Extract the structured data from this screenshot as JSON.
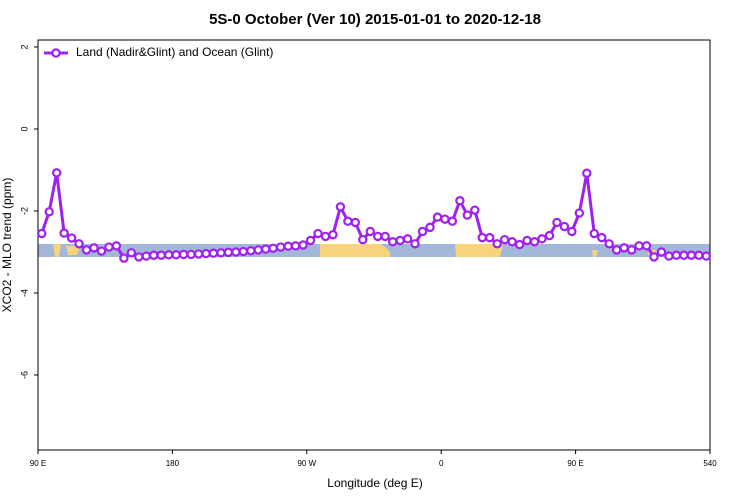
{
  "chart_data": {
    "type": "line",
    "title": "5S-0 October (Ver 10)   2015-01-01 to 2020-12-18",
    "x_label": "Longitude (deg E)",
    "y_label": "XCO2 - MLO trend (ppm)",
    "x": [
      92.5,
      97.5,
      102.5,
      107.5,
      112.5,
      117.5,
      122.5,
      127.5,
      132.5,
      137.5,
      142.5,
      147.5,
      152.5,
      157.5,
      162.5,
      167.5,
      172.5,
      177.5,
      182.5,
      187.5,
      192.5,
      197.5,
      202.5,
      207.5,
      212.5,
      217.5,
      222.5,
      227.5,
      232.5,
      237.5,
      242.5,
      247.5,
      252.5,
      257.5,
      262.5,
      267.5,
      272.5,
      277.5,
      282.5,
      287.5,
      292.5,
      297.5,
      302.5,
      307.5,
      312.5,
      317.5,
      322.5,
      327.5,
      332.5,
      337.5,
      342.5,
      347.5,
      352.5,
      357.5,
      362.5,
      367.5,
      372.5,
      377.5,
      382.5,
      387.5,
      392.5,
      397.5,
      402.5,
      407.5,
      412.5,
      417.5,
      422.5,
      427.5,
      432.5,
      437.5,
      442.5,
      447.5,
      452.5,
      457.5,
      462.5,
      467.5,
      472.5,
      477.5,
      482.5,
      487.5,
      492.5,
      497.5,
      502.5,
      507.5,
      512.5,
      517.5,
      522.5,
      527.5,
      532.5,
      537.5
    ],
    "series": [
      {
        "name": "Land (Nadir&Glint) and Ocean (Glint)",
        "color": "#a020f0",
        "values": [
          -2.55,
          -2.02,
          -1.07,
          -2.54,
          -2.66,
          -2.8,
          -2.95,
          -2.9,
          -2.98,
          -2.88,
          -2.85,
          -3.15,
          -3.02,
          -3.12,
          -3.1,
          -3.08,
          -3.08,
          -3.07,
          -3.07,
          -3.06,
          -3.06,
          -3.05,
          -3.04,
          -3.03,
          -3.02,
          -3.01,
          -3.0,
          -2.99,
          -2.97,
          -2.95,
          -2.93,
          -2.91,
          -2.88,
          -2.86,
          -2.85,
          -2.83,
          -2.72,
          -2.55,
          -2.62,
          -2.58,
          -1.9,
          -2.25,
          -2.28,
          -2.7,
          -2.5,
          -2.62,
          -2.62,
          -2.75,
          -2.72,
          -2.68,
          -2.8,
          -2.5,
          -2.4,
          -2.15,
          -2.2,
          -2.25,
          -1.75,
          -2.1,
          -1.98,
          -2.65,
          -2.65,
          -2.8,
          -2.7,
          -2.75,
          -2.82,
          -2.72,
          -2.75,
          -2.68,
          -2.6,
          -2.28,
          -2.38,
          -2.5,
          -2.05,
          -1.08,
          -2.55,
          -2.65,
          -2.8,
          -2.95,
          -2.9,
          -2.95,
          -2.85,
          -2.85,
          -3.12,
          -3.0,
          -3.1,
          -3.08,
          -3.08,
          -3.08,
          -3.08,
          -3.1
        ]
      }
    ],
    "xlim": [
      90,
      540
    ],
    "xticks": [
      {
        "value": 90,
        "label": "90 E"
      },
      180,
      {
        "value": 270,
        "label": "90 W"
      },
      {
        "value": 360,
        "label": "0"
      },
      {
        "value": 450,
        "label": "90 E"
      },
      540
    ],
    "ylim": [
      -7.83,
      2.17
    ],
    "yticks": [
      2,
      0,
      -2,
      -4,
      -6
    ],
    "legend": "top-left"
  }
}
